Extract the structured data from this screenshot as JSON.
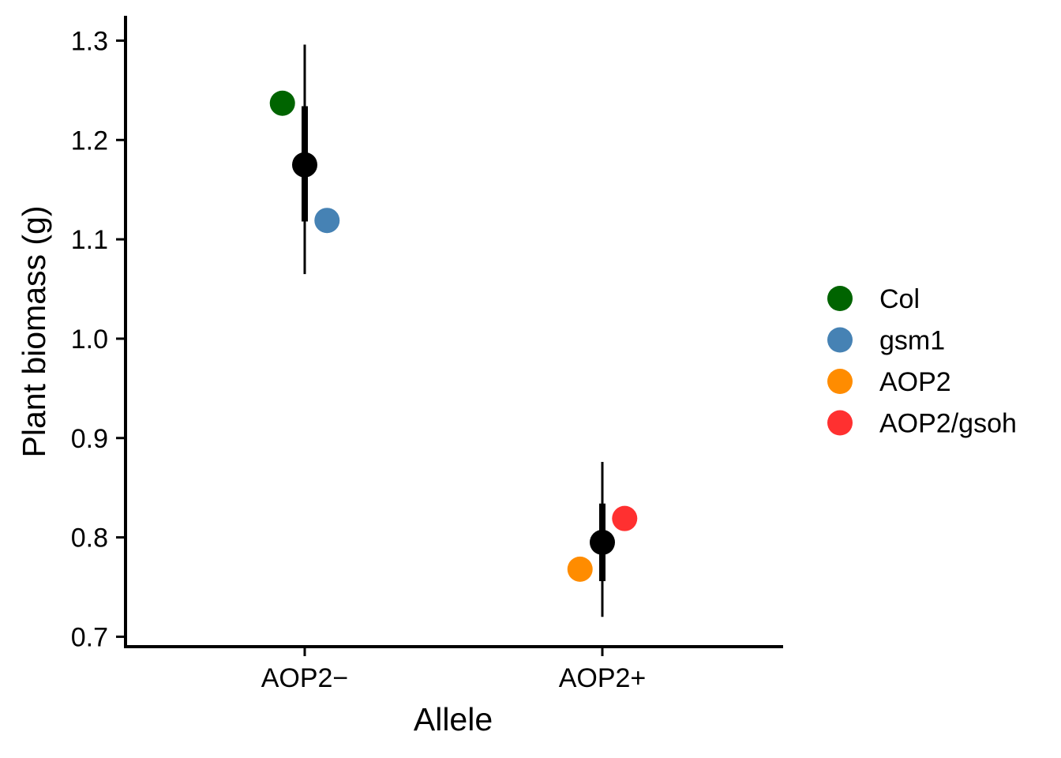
{
  "chart_data": {
    "type": "scatter",
    "xlabel": "Allele",
    "ylabel": "Plant biomass (g)",
    "categories": [
      "AOP2−",
      "AOP2+"
    ],
    "ylim": [
      0.69,
      1.325
    ],
    "yticks": [
      0.7,
      0.8,
      0.9,
      1.0,
      1.1,
      1.2,
      1.3
    ],
    "ytick_labels": [
      "0.7",
      "0.8",
      "0.9",
      "1.0",
      "1.1",
      "1.2",
      "1.3"
    ],
    "grid": false,
    "legend_position": "right",
    "series": [
      {
        "name": "Col",
        "color": "#006400",
        "category": 0,
        "offset": -0.075,
        "value": 1.237
      },
      {
        "name": "gsm1",
        "color": "#4682B4",
        "category": 0,
        "offset": 0.075,
        "value": 1.119
      },
      {
        "name": "AOP2",
        "color": "#FF8C00",
        "category": 1,
        "offset": -0.075,
        "value": 0.768
      },
      {
        "name": "AOP2/gsoh",
        "color": "#FF3030",
        "category": 1,
        "offset": 0.075,
        "value": 0.819
      }
    ],
    "summary": [
      {
        "category": 0,
        "mean": 1.175,
        "inner_low": 1.118,
        "inner_high": 1.234,
        "outer_low": 1.065,
        "outer_high": 1.296,
        "color": "#000000"
      },
      {
        "category": 1,
        "mean": 0.795,
        "inner_low": 0.756,
        "inner_high": 0.834,
        "outer_low": 0.72,
        "outer_high": 0.876,
        "color": "#000000"
      }
    ]
  }
}
